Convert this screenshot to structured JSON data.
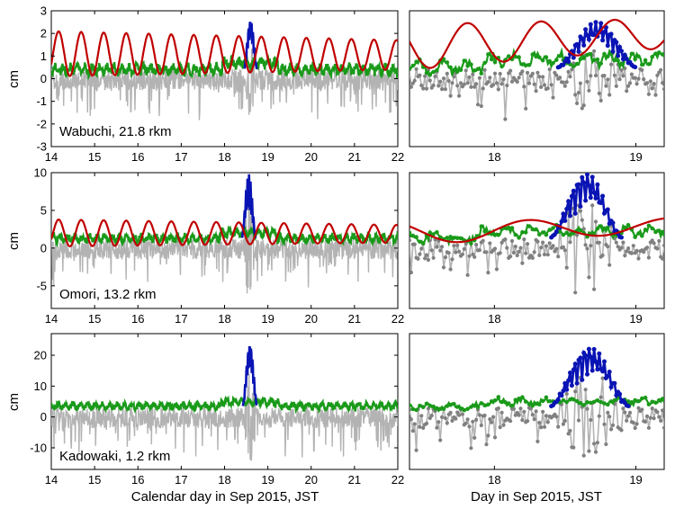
{
  "colors": {
    "raw": "#b3b3b3",
    "raw_points": "#808080",
    "baseline": "#1a9a1a",
    "event": "#0a14b4",
    "tide": "#c00000"
  },
  "chart_data": [
    {
      "type": "line",
      "panel": "wabuchi-full",
      "station_label": "Wabuchi, 21.8 rkm",
      "xlim": [
        14,
        22
      ],
      "ylim": [
        -3,
        3
      ],
      "xticks": [
        14,
        15,
        16,
        17,
        18,
        19,
        20,
        21,
        22
      ],
      "xticklabels": [
        "14",
        "15",
        "16",
        "17",
        "18",
        "19",
        "20",
        "21",
        "22"
      ],
      "yticks": [
        -3,
        -2,
        -1,
        0,
        1,
        2,
        3
      ],
      "yticklabels": [
        "-3",
        "-2",
        "-1",
        "0",
        "1",
        "2",
        "3"
      ],
      "ylabel": "cm",
      "xlabel": "",
      "series": [
        {
          "name": "raw",
          "role": "raw"
        },
        {
          "name": "baseline",
          "role": "baseline",
          "level": 0.4,
          "noise": 0.25
        },
        {
          "name": "event",
          "role": "event",
          "x_range": [
            18.45,
            18.75
          ],
          "peak": 2.2
        },
        {
          "name": "tide",
          "role": "tide",
          "mean": 1.1,
          "amp": 1.0,
          "period": 0.52,
          "trend": -0.05
        }
      ]
    },
    {
      "type": "line",
      "panel": "wabuchi-zoom",
      "xlim": [
        17.4,
        19.2
      ],
      "ylim": [
        -3,
        3
      ],
      "xticks": [
        18,
        19
      ],
      "xticklabels": [
        "18",
        "19"
      ],
      "yticks": [],
      "yticklabels": [],
      "ylabel": "",
      "xlabel": "",
      "series": [
        {
          "name": "raw",
          "role": "raw"
        },
        {
          "name": "baseline",
          "role": "baseline",
          "level": 0.5,
          "noise": 0.3
        },
        {
          "name": "event",
          "role": "event",
          "x_range": [
            18.45,
            19.0
          ],
          "peak": 2.0
        },
        {
          "name": "tide",
          "role": "tide",
          "mean": 1.4,
          "amp": 1.0,
          "period": 0.52,
          "trend": 0.6
        }
      ]
    },
    {
      "type": "line",
      "panel": "omori-full",
      "station_label": "Omori, 13.2 rkm",
      "xlim": [
        14,
        22
      ],
      "ylim": [
        -8,
        10
      ],
      "xticks": [
        14,
        15,
        16,
        17,
        18,
        19,
        20,
        21,
        22
      ],
      "xticklabels": [
        "14",
        "15",
        "16",
        "17",
        "18",
        "19",
        "20",
        "21",
        "22"
      ],
      "yticks": [
        -5,
        0,
        5,
        10
      ],
      "yticklabels": [
        "-5",
        "0",
        "5",
        "10"
      ],
      "ylabel": "cm",
      "xlabel": "",
      "series": [
        {
          "name": "raw",
          "role": "raw"
        },
        {
          "name": "baseline",
          "role": "baseline",
          "level": 1.3,
          "noise": 0.6
        },
        {
          "name": "event",
          "role": "event",
          "x_range": [
            18.4,
            18.72
          ],
          "peak": 8.5
        },
        {
          "name": "tide",
          "role": "tide",
          "mean": 2.0,
          "amp": 1.8,
          "period": 0.52,
          "trend": -0.1
        }
      ]
    },
    {
      "type": "line",
      "panel": "omori-zoom",
      "xlim": [
        17.4,
        19.2
      ],
      "ylim": [
        -8,
        10
      ],
      "xticks": [
        18,
        19
      ],
      "xticklabels": [
        "18",
        "19"
      ],
      "yticks": [],
      "yticklabels": [],
      "ylabel": "",
      "xlabel": "",
      "series": [
        {
          "name": "raw",
          "role": "raw"
        },
        {
          "name": "baseline",
          "role": "baseline",
          "level": 1.4,
          "noise": 0.7
        },
        {
          "name": "event",
          "role": "event",
          "x_range": [
            18.4,
            18.9
          ],
          "peak": 8.5
        },
        {
          "name": "tide",
          "role": "tide",
          "mean": 2.0,
          "amp": 1.5,
          "period": 1.0,
          "trend": 1.0
        }
      ]
    },
    {
      "type": "line",
      "panel": "kadowaki-full",
      "station_label": "Kadowaki, 1.2 rkm",
      "xlim": [
        14,
        22
      ],
      "ylim": [
        -17,
        27
      ],
      "xticks": [
        14,
        15,
        16,
        17,
        18,
        19,
        20,
        21,
        22
      ],
      "xticklabels": [
        "14",
        "15",
        "16",
        "17",
        "18",
        "19",
        "20",
        "21",
        "22"
      ],
      "yticks": [
        -10,
        0,
        10,
        20
      ],
      "yticklabels": [
        "-10",
        "0",
        "10",
        "20"
      ],
      "ylabel": "cm",
      "xlabel": "Calendar day in Sep 2015, JST",
      "series": [
        {
          "name": "raw",
          "role": "raw"
        },
        {
          "name": "baseline",
          "role": "baseline",
          "level": 3.5,
          "noise": 1.2
        },
        {
          "name": "event",
          "role": "event",
          "x_range": [
            18.42,
            18.75
          ],
          "peak": 20
        }
      ]
    },
    {
      "type": "line",
      "panel": "kadowaki-zoom",
      "xlim": [
        17.4,
        19.2
      ],
      "ylim": [
        -17,
        27
      ],
      "xticks": [
        18,
        19
      ],
      "xticklabels": [
        "18",
        "19"
      ],
      "yticks": [],
      "yticklabels": [],
      "ylabel": "",
      "xlabel": "Day in Sep 2015, JST",
      "series": [
        {
          "name": "raw",
          "role": "raw"
        },
        {
          "name": "baseline",
          "role": "baseline",
          "level": 3.5,
          "noise": 1.2
        },
        {
          "name": "event",
          "role": "event",
          "x_range": [
            18.4,
            18.95
          ],
          "peak": 19
        }
      ]
    }
  ]
}
